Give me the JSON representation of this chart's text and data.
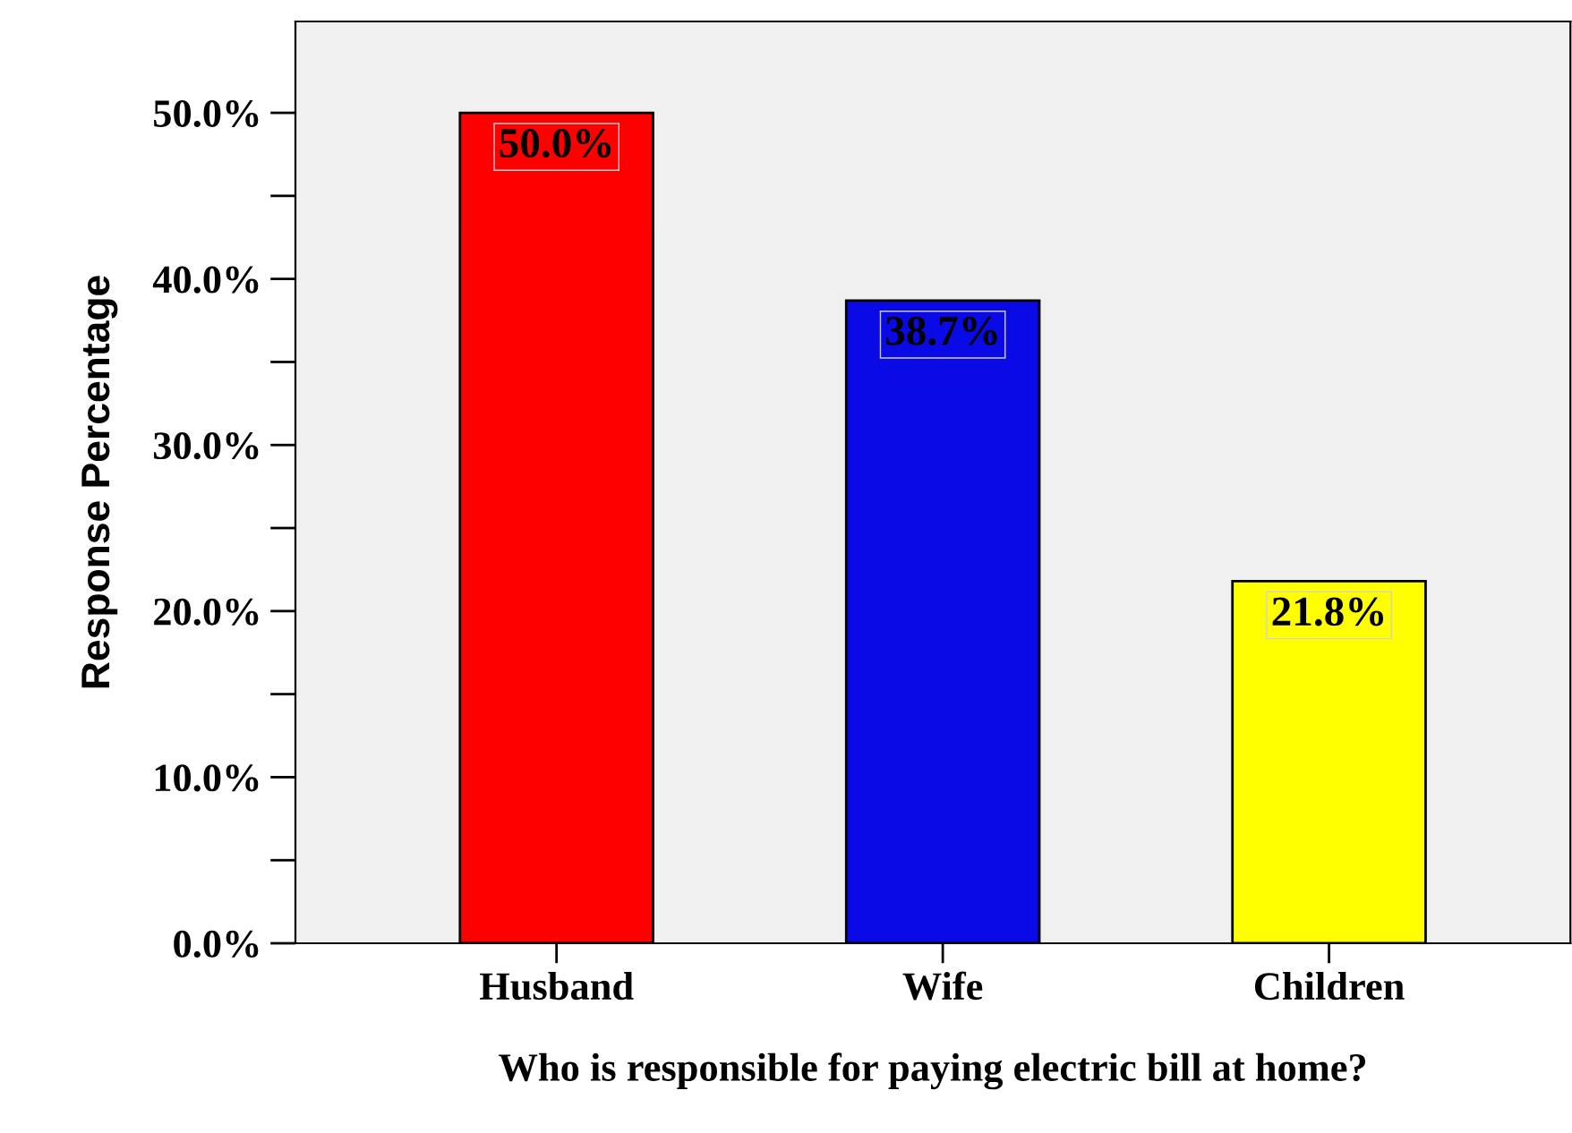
{
  "chart_data": {
    "type": "bar",
    "xlabel": "Who is responsible for paying electric bill at home?",
    "ylabel": "Response Percentage",
    "categories": [
      "Husband",
      "Wife",
      "Children"
    ],
    "values": [
      50.0,
      38.7,
      21.8
    ],
    "colors": [
      "#ff0000",
      "#0a0ae6",
      "#ffff00"
    ],
    "value_labels": [
      "50.0%",
      "38.7%",
      "21.8%"
    ],
    "ylim": [
      0,
      55.5
    ],
    "yticks": [
      {
        "value": 0,
        "label": "0.0%"
      },
      {
        "value": 5,
        "label": null
      },
      {
        "value": 10,
        "label": "10.0%"
      },
      {
        "value": 15,
        "label": null
      },
      {
        "value": 20,
        "label": "20.0%"
      },
      {
        "value": 25,
        "label": null
      },
      {
        "value": 30,
        "label": "30.0%"
      },
      {
        "value": 35,
        "label": null
      },
      {
        "value": 40,
        "label": "40.0%"
      },
      {
        "value": 45,
        "label": null
      },
      {
        "value": 50,
        "label": "50.0%"
      }
    ],
    "grid": false,
    "legend": false
  }
}
